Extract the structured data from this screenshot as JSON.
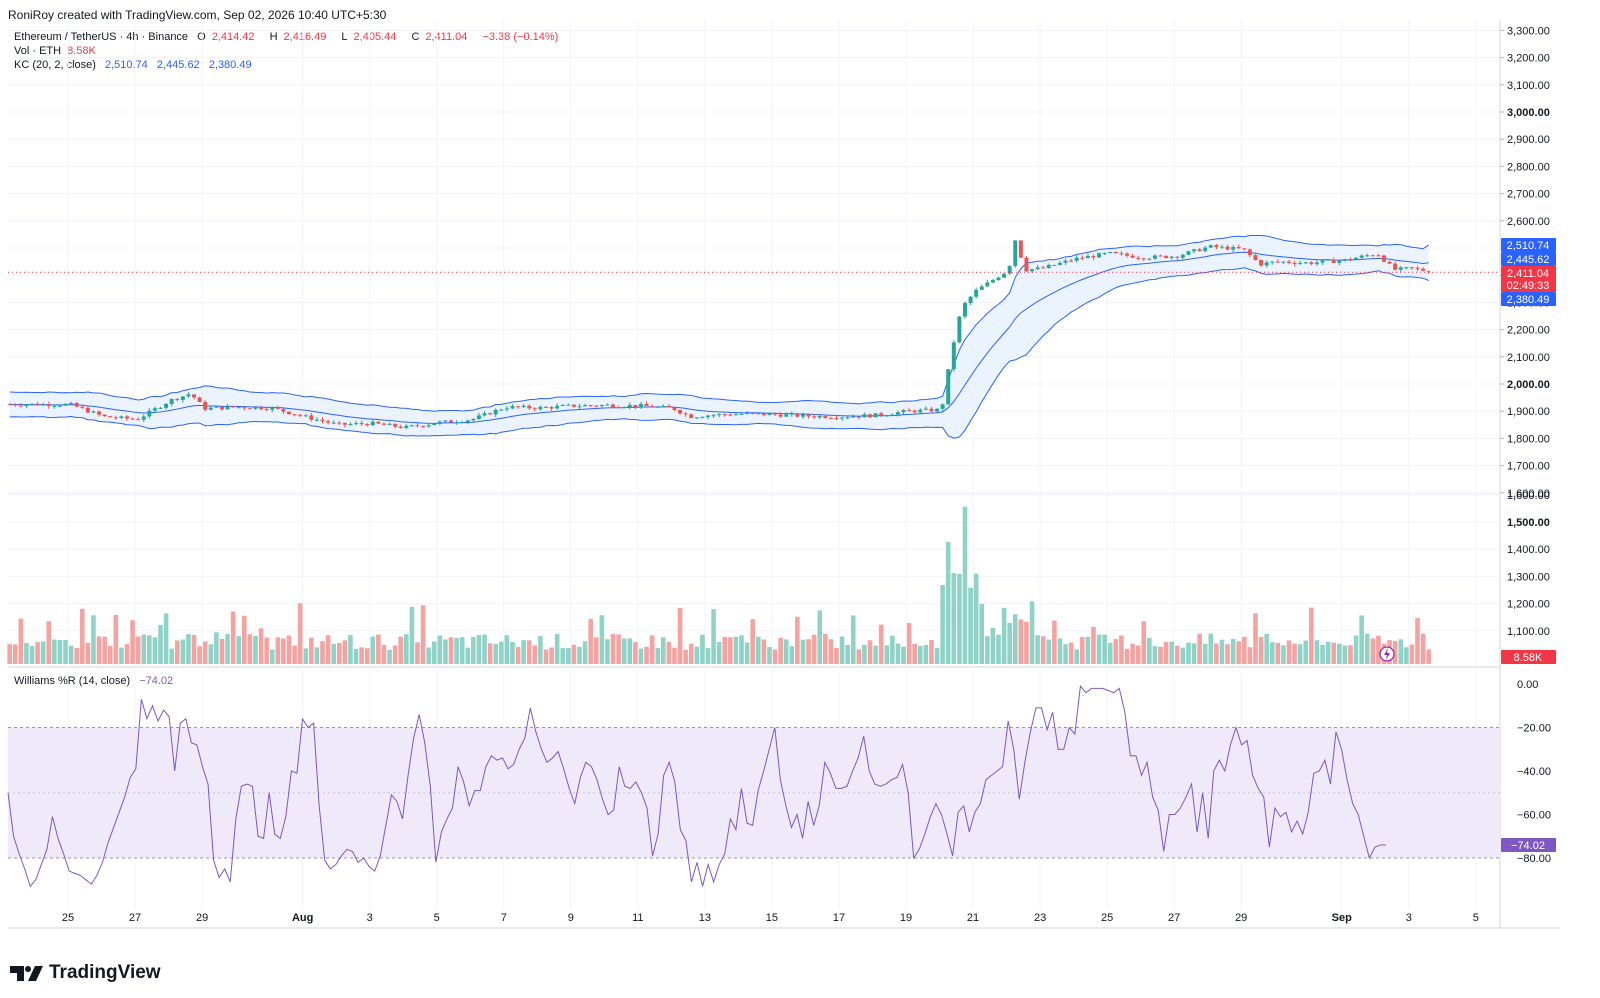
{
  "header": {
    "credit": "RoniRoy created with TradingView.com, Sep 02, 2026 10:40 UTC+5:30"
  },
  "legend": {
    "symbol": "Ethereum / TetherUS · 4h · Binance",
    "open_label": "O",
    "open_value": "2,414.42",
    "high_label": "H",
    "high_value": "2,416.49",
    "low_label": "L",
    "low_value": "2,405.44",
    "close_label": "C",
    "close_value": "2,411.04",
    "change": "−3.38 (−0.14%)",
    "vol_label": "Vol · ETH",
    "vol_value": "8.58K",
    "kc_label": "KC (20, 2, close)",
    "kc_upper": "2,510.74",
    "kc_middle": "2,445.62",
    "kc_lower": "2,380.49",
    "wr_label": "Williams %R (14, close)",
    "wr_value": "−74.02"
  },
  "footer": {
    "brand": "TradingView"
  },
  "colors": {
    "up": "#26a69a",
    "down": "#ef5350",
    "vol_up": "#8fd3c8",
    "vol_down": "#f5a3a1",
    "kc_line": "#2962ff",
    "kc_fill": "#e3f0fd",
    "wr_line": "#7e57c2",
    "wr_band": "#efe9f9",
    "badge_red": "#f23645",
    "badge_blue": "#2962ff",
    "badge_purple": "#7e57c2"
  },
  "chart_data": [
    {
      "type": "candlestick",
      "name": "Ethereum / TetherUS",
      "ylim": [
        1600,
        3300
      ],
      "y_ticks": [
        "1,600.00",
        "1,700.00",
        "1,800.00",
        "1,900.00",
        "2,000.00",
        "2,100.00",
        "2,200.00",
        "2,300.00",
        "2,400.00",
        "2,500.00",
        "2,600.00",
        "2,700.00",
        "2,800.00",
        "2,900.00",
        "3,000.00",
        "3,100.00",
        "3,200.00",
        "3,300.00"
      ],
      "y_tick_values": [
        1600,
        1700,
        1800,
        1900,
        2000,
        2100,
        2200,
        2300,
        2400,
        2500,
        2600,
        2700,
        2800,
        2900,
        3000,
        3100,
        3200,
        3300
      ],
      "bold_ticks": [
        "1,500.00",
        "2,000.00",
        "3,000.00"
      ],
      "x_labels": [
        "25",
        "27",
        "29",
        "Aug",
        "3",
        "5",
        "7",
        "9",
        "11",
        "13",
        "15",
        "17",
        "19",
        "21",
        "23",
        "25",
        "27",
        "29",
        "Sep",
        "3",
        "5"
      ],
      "x_label_bold": [
        "Aug",
        "Sep"
      ],
      "close_anchors": [
        {
          "day": 0,
          "price": 1925
        },
        {
          "day": 1,
          "price": 1880
        },
        {
          "day": 2,
          "price": 1870
        },
        {
          "day": 3,
          "price": 1940
        },
        {
          "day": 3.6,
          "price": 1965
        },
        {
          "day": 4,
          "price": 1910
        },
        {
          "day": 5,
          "price": 1915
        },
        {
          "day": 6,
          "price": 1912
        },
        {
          "day": 7,
          "price": 1880
        },
        {
          "day": 8,
          "price": 1850
        },
        {
          "day": 9,
          "price": 1855
        },
        {
          "day": 10,
          "price": 1840
        },
        {
          "day": 11,
          "price": 1858
        },
        {
          "day": 12,
          "price": 1870
        },
        {
          "day": 13,
          "price": 1915
        },
        {
          "day": 14,
          "price": 1912
        },
        {
          "day": 15,
          "price": 1920
        },
        {
          "day": 16,
          "price": 1922
        },
        {
          "day": 17,
          "price": 1920
        },
        {
          "day": 18,
          "price": 1910
        },
        {
          "day": 18.5,
          "price": 1880
        },
        {
          "day": 19,
          "price": 1885
        },
        {
          "day": 20,
          "price": 1890
        },
        {
          "day": 21,
          "price": 1888
        },
        {
          "day": 22,
          "price": 1882
        },
        {
          "day": 23,
          "price": 1880
        },
        {
          "day": 24,
          "price": 1885
        },
        {
          "day": 25,
          "price": 1900
        },
        {
          "day": 26,
          "price": 1905
        },
        {
          "day": 26.3,
          "price": 2120
        },
        {
          "day": 26.6,
          "price": 2280
        },
        {
          "day": 27,
          "price": 2340
        },
        {
          "day": 27.5,
          "price": 2380
        },
        {
          "day": 28,
          "price": 2420
        },
        {
          "day": 28.2,
          "price": 2530
        },
        {
          "day": 28.5,
          "price": 2420
        },
        {
          "day": 29,
          "price": 2425
        },
        {
          "day": 30,
          "price": 2460
        },
        {
          "day": 31,
          "price": 2480
        },
        {
          "day": 32,
          "price": 2465
        },
        {
          "day": 33,
          "price": 2470
        },
        {
          "day": 34,
          "price": 2505
        },
        {
          "day": 35,
          "price": 2495
        },
        {
          "day": 35.5,
          "price": 2440
        },
        {
          "day": 36,
          "price": 2450
        },
        {
          "day": 37,
          "price": 2445
        },
        {
          "day": 38,
          "price": 2455
        },
        {
          "day": 39,
          "price": 2480
        },
        {
          "day": 39.5,
          "price": 2420
        },
        {
          "day": 40,
          "price": 2425
        },
        {
          "day": 40.6,
          "price": 2414
        }
      ],
      "keltner_channel": {
        "name": "KC (20, 2, close)",
        "last_upper": 2510.74,
        "last_middle": 2445.62,
        "last_lower": 2380.49
      },
      "last_price": 2411.04,
      "countdown": "02:49:33"
    },
    {
      "type": "bar",
      "name": "Vol · ETH",
      "ylim": [
        1000,
        1650
      ],
      "y_ticks": [
        "1,100.00",
        "1,200.00",
        "1,300.00",
        "1,400.00",
        "1,500.00",
        "1,600.00"
      ],
      "y_tick_values": [
        1100,
        1200,
        1300,
        1400,
        1500,
        1600
      ],
      "last_value_label": "8.58K",
      "partial_tick_label": "000"
    },
    {
      "type": "line",
      "name": "Williams %R (14, close)",
      "ylim": [
        -100,
        5
      ],
      "y_ticks": [
        "0.00",
        "−20.00",
        "−40.00",
        "−60.00",
        "−80.00"
      ],
      "y_tick_values": [
        0,
        -20,
        -40,
        -60,
        -80
      ],
      "band": [
        -80,
        -20
      ],
      "last_value": -74.02,
      "last_value_label": "−74.02",
      "values": [
        -50,
        -70,
        -78,
        -85,
        -93,
        -90,
        -83,
        -76,
        -61,
        -71,
        -78,
        -86,
        -87,
        -88,
        -90,
        -92,
        -88,
        -82,
        -73,
        -66,
        -59,
        -52,
        -43,
        -39,
        -7,
        -16,
        -10,
        -17,
        -12,
        -15,
        -40,
        -18,
        -16,
        -27,
        -28,
        -38,
        -46,
        -81,
        -89,
        -85,
        -91,
        -62,
        -47,
        -46,
        -47,
        -70,
        -71,
        -50,
        -69,
        -71,
        -61,
        -40,
        -41,
        -16,
        -20,
        -18,
        -56,
        -81,
        -85,
        -83,
        -79,
        -76,
        -77,
        -82,
        -80,
        -84,
        -86,
        -79,
        -65,
        -51,
        -54,
        -62,
        -42,
        -25,
        -14,
        -27,
        -47,
        -82,
        -68,
        -62,
        -57,
        -38,
        -45,
        -56,
        -49,
        -49,
        -38,
        -33,
        -35,
        -34,
        -39,
        -37,
        -30,
        -25,
        -11,
        -22,
        -30,
        -36,
        -34,
        -31,
        -39,
        -48,
        -55,
        -43,
        -36,
        -38,
        -44,
        -53,
        -60,
        -58,
        -38,
        -47,
        -48,
        -45,
        -50,
        -57,
        -79,
        -69,
        -42,
        -36,
        -45,
        -67,
        -72,
        -91,
        -82,
        -93,
        -83,
        -91,
        -83,
        -78,
        -62,
        -67,
        -48,
        -64,
        -65,
        -49,
        -40,
        -30,
        -20,
        -44,
        -56,
        -66,
        -60,
        -71,
        -54,
        -65,
        -56,
        -36,
        -41,
        -48,
        -48,
        -47,
        -40,
        -34,
        -24,
        -40,
        -46,
        -47,
        -46,
        -44,
        -43,
        -37,
        -50,
        -80,
        -76,
        -69,
        -61,
        -55,
        -60,
        -69,
        -79,
        -59,
        -56,
        -68,
        -59,
        -55,
        -44,
        -42,
        -40,
        -38,
        -17,
        -30,
        -53,
        -36,
        -22,
        -11,
        -11,
        -21,
        -13,
        -30,
        -30,
        -20,
        -23,
        -1,
        -4,
        -2,
        -2,
        -2,
        -3,
        -4,
        -2,
        -13,
        -33,
        -33,
        -42,
        -36,
        -52,
        -58,
        -77,
        -60,
        -60,
        -57,
        -52,
        -46,
        -68,
        -50,
        -71,
        -40,
        -35,
        -40,
        -28,
        -20,
        -28,
        -26,
        -42,
        -48,
        -52,
        -75,
        -57,
        -61,
        -59,
        -68,
        -63,
        -69,
        -59,
        -41,
        -40,
        -35,
        -46,
        -22,
        -30,
        -44,
        -55,
        -60,
        -70,
        -80,
        -75,
        -74,
        -74.02
      ]
    }
  ]
}
